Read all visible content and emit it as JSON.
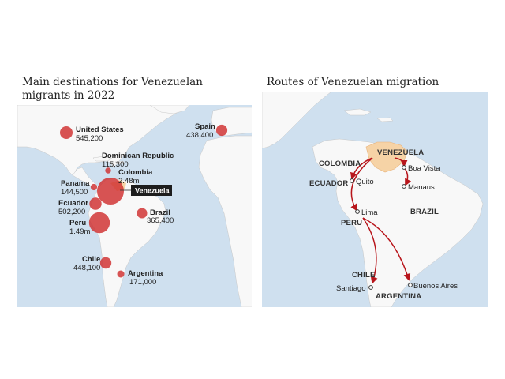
{
  "left_panel": {
    "title": "Main destinations for Venezuelan migrants in 2022",
    "origin_label": "Venezuela",
    "destinations": [
      {
        "name": "United States",
        "value": "545,200",
        "count": 545200
      },
      {
        "name": "Spain",
        "value": "438,400",
        "count": 438400
      },
      {
        "name": "Dominican Republic",
        "value": "115,300",
        "count": 115300
      },
      {
        "name": "Colombia",
        "value": "2.48m",
        "count": 2480000
      },
      {
        "name": "Panama",
        "value": "144,500",
        "count": 144500
      },
      {
        "name": "Ecuador",
        "value": "502,200",
        "count": 502200
      },
      {
        "name": "Peru",
        "value": "1.49m",
        "count": 1490000
      },
      {
        "name": "Brazil",
        "value": "365,400",
        "count": 365400
      },
      {
        "name": "Chile",
        "value": "448,100",
        "count": 448100
      },
      {
        "name": "Argentina",
        "value": "171,000",
        "count": 171000
      }
    ]
  },
  "right_panel": {
    "title": "Routes of Venezuelan migration",
    "countries": [
      "VENEZUELA",
      "COLOMBIA",
      "ECUADOR",
      "BRAZIL",
      "PERU",
      "CHILE",
      "ARGENTINA"
    ],
    "cities": [
      "Boa Vista",
      "Manaus",
      "Quito",
      "Lima",
      "Santiago",
      "Buenos Aires"
    ]
  },
  "colors": {
    "sea": "#cfe0ef",
    "land": "#f8f8f8",
    "venezuela": "#f6d3a6",
    "bubble": "#cf2e2e",
    "route": "#b8151b"
  }
}
